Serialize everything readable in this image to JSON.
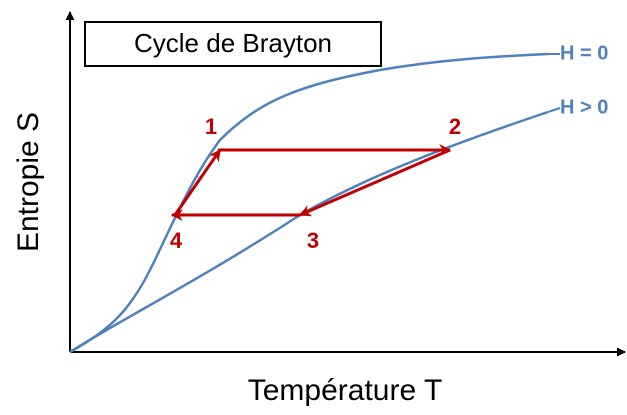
{
  "title": "Cycle de Brayton",
  "axes": {
    "y_label": "Entropie S",
    "x_label": "Température T"
  },
  "curves": [
    {
      "label": "H = 0"
    },
    {
      "label": "H > 0"
    }
  ],
  "points": [
    {
      "label": "1"
    },
    {
      "label": "2"
    },
    {
      "label": "3"
    },
    {
      "label": "4"
    }
  ]
}
